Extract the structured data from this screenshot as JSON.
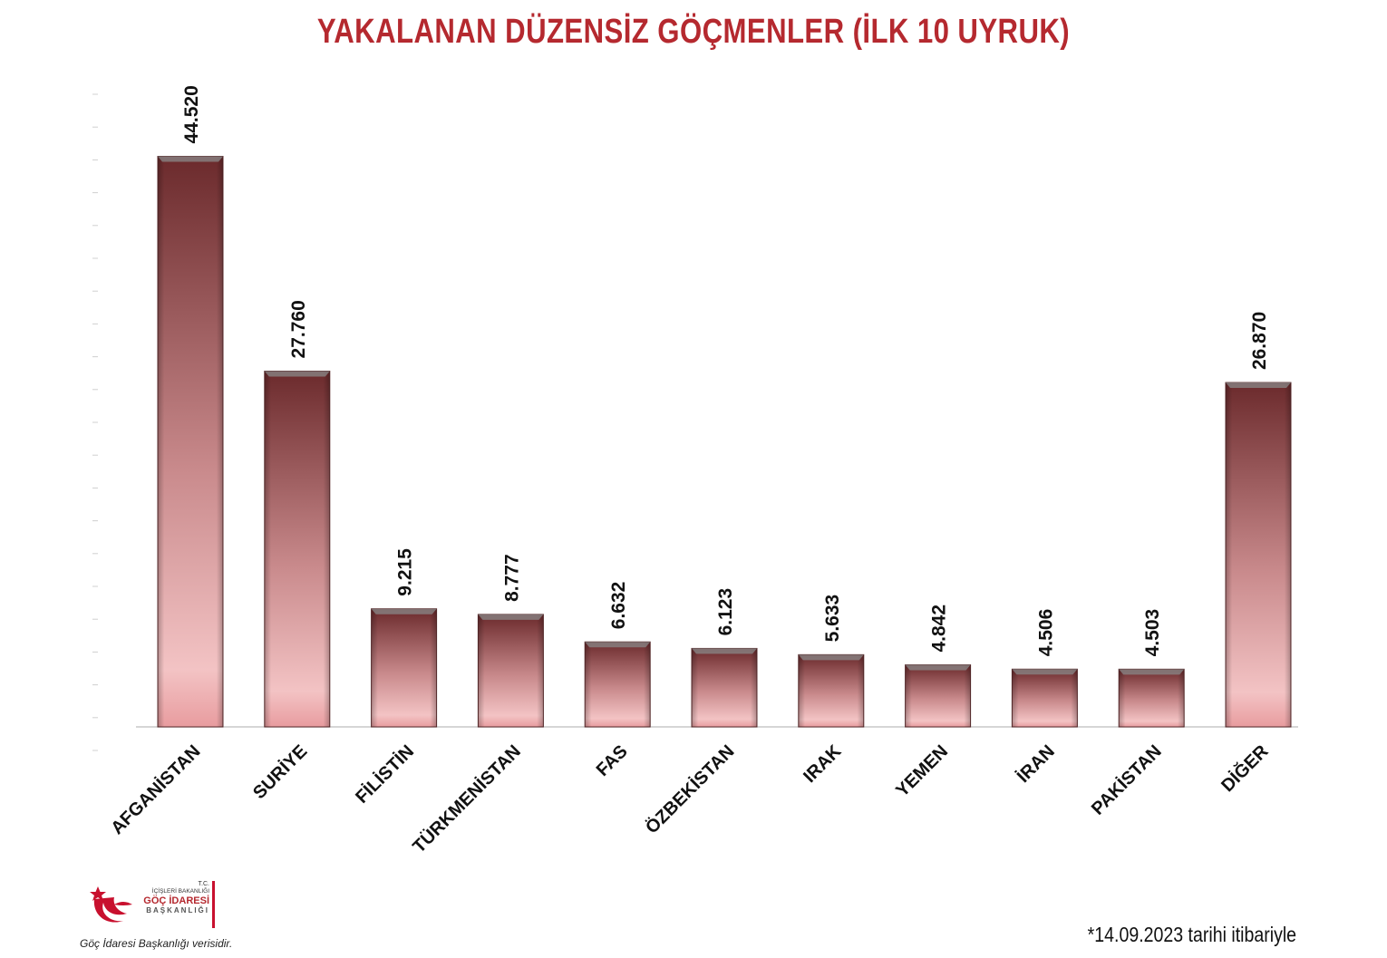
{
  "chart_data": {
    "type": "bar",
    "title": "YAKALANAN DÜZENSİZ GÖÇMENLER (İLK 10 UYRUK)",
    "categories": [
      "AFGANİSTAN",
      "SURİYE",
      "FİLİSTİN",
      "TÜRKMENİSTAN",
      "FAS",
      "ÖZBEKİSTAN",
      "IRAK",
      "YEMEN",
      "İRAN",
      "PAKİSTAN",
      "DİĞER"
    ],
    "values": [
      44520,
      27760,
      9215,
      8777,
      6632,
      6123,
      5633,
      4842,
      4506,
      4503,
      26870
    ],
    "value_labels": [
      "44.520",
      "27.760",
      "9.215",
      "8.777",
      "6.632",
      "6.123",
      "5.633",
      "4.842",
      "4.506",
      "4.503",
      "26.870"
    ],
    "ylim": [
      0,
      50000
    ],
    "grid": false,
    "bar_color_top": "#6b2a2c",
    "bar_color_bottom": "#e8a4a6"
  },
  "footer": {
    "logo": {
      "tc": "T.C.",
      "ministry": "İÇİŞLERİ BAKANLIĞI",
      "name": "GÖÇ İDARESİ",
      "presidency": "BAŞKANLIĞI",
      "emblem_icon": "crescent-star-icon",
      "accent_color": "#c8102e"
    },
    "source": "Göç İdaresi Başkanlığı verisidir.",
    "date_note": "*14.09.2023 tarihi itibariyle"
  }
}
